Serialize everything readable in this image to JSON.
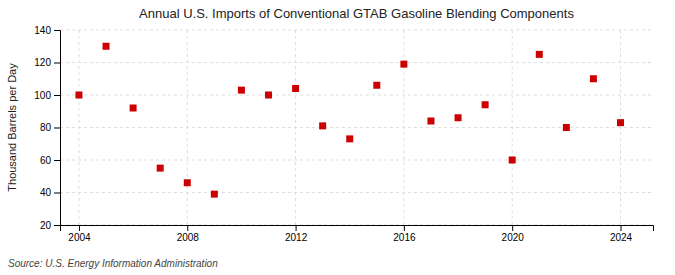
{
  "chart_data": {
    "type": "scatter",
    "title": "Annual U.S. Imports of Conventional GTAB Gasoline Blending Components",
    "ylabel": "Thousand Barrels per Day",
    "annotations": [
      "Source: U.S. Energy Information Administration"
    ],
    "x": [
      2004,
      2005,
      2006,
      2007,
      2008,
      2009,
      2010,
      2011,
      2012,
      2013,
      2014,
      2015,
      2016,
      2017,
      2018,
      2019,
      2020,
      2021,
      2022,
      2023,
      2024
    ],
    "values": [
      100,
      130,
      92,
      55,
      46,
      39,
      103,
      100,
      104,
      81,
      73,
      106,
      119,
      84,
      86,
      94,
      60,
      125,
      80,
      110,
      83
    ],
    "color": "#cc0000",
    "marker": "square",
    "xlim": [
      2003.3,
      2025.2
    ],
    "xticks": [
      2004,
      2008,
      2012,
      2016,
      2020,
      2024
    ],
    "ylim": [
      20,
      140
    ],
    "yticks": [
      20,
      40,
      60,
      80,
      100,
      120,
      140
    ],
    "grid": true
  }
}
